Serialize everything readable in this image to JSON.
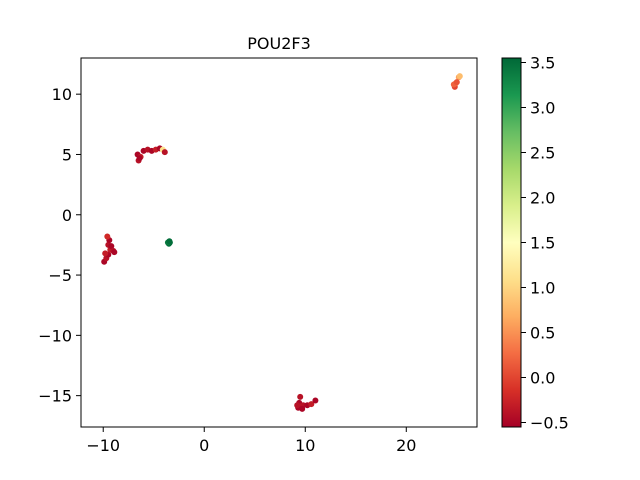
{
  "chart_data": {
    "type": "scatter",
    "title": "POU2F3",
    "xlabel": "",
    "ylabel": "",
    "xlim": [
      -12.2,
      27.0
    ],
    "ylim": [
      -17.6,
      13.0
    ],
    "xticks": [
      -10,
      0,
      10,
      20
    ],
    "yticks": [
      10,
      5,
      0,
      -5,
      -10,
      -15
    ],
    "xtick_labels": [
      "−10",
      "0",
      "10",
      "20"
    ],
    "ytick_labels": [
      "10",
      "5",
      "0",
      "−5",
      "−10",
      "−15"
    ],
    "grid": false,
    "colorbar": {
      "colormap": "RdYlGn",
      "min": -0.55,
      "max": 3.55,
      "ticks": [
        3.5,
        3.0,
        2.5,
        2.0,
        1.5,
        1.0,
        0.5,
        0.0,
        -0.5
      ],
      "tick_labels": [
        "3.5",
        "3.0",
        "2.5",
        "2.0",
        "1.5",
        "1.0",
        "0.5",
        "0.0",
        "−0.5"
      ]
    },
    "points": [
      {
        "x": -9.9,
        "y": -3.9,
        "v": -0.5
      },
      {
        "x": -9.7,
        "y": -3.6,
        "v": -0.4
      },
      {
        "x": -9.5,
        "y": -3.3,
        "v": -0.5
      },
      {
        "x": -9.3,
        "y": -2.9,
        "v": -0.3
      },
      {
        "x": -9.5,
        "y": -2.5,
        "v": -0.4
      },
      {
        "x": -9.4,
        "y": -2.1,
        "v": -0.5
      },
      {
        "x": -9.6,
        "y": -1.8,
        "v": -0.2
      },
      {
        "x": -9.2,
        "y": -2.6,
        "v": -0.5
      },
      {
        "x": -9.0,
        "y": -3.0,
        "v": -0.4
      },
      {
        "x": -8.9,
        "y": -3.1,
        "v": -0.5
      },
      {
        "x": -9.8,
        "y": -3.2,
        "v": -0.3
      },
      {
        "x": -6.5,
        "y": 4.5,
        "v": -0.4
      },
      {
        "x": -6.6,
        "y": 5.0,
        "v": -0.5
      },
      {
        "x": -6.3,
        "y": 4.8,
        "v": -0.3
      },
      {
        "x": -6.0,
        "y": 5.3,
        "v": -0.5
      },
      {
        "x": -5.6,
        "y": 5.4,
        "v": -0.4
      },
      {
        "x": -5.2,
        "y": 5.3,
        "v": -0.5
      },
      {
        "x": -4.8,
        "y": 5.4,
        "v": -0.3
      },
      {
        "x": -4.4,
        "y": 5.5,
        "v": -0.5
      },
      {
        "x": -4.1,
        "y": 5.4,
        "v": 1.1
      },
      {
        "x": -3.9,
        "y": 5.2,
        "v": -0.4
      },
      {
        "x": -6.4,
        "y": 4.7,
        "v": -0.5
      },
      {
        "x": -3.5,
        "y": -2.4,
        "v": 3.5
      },
      {
        "x": -3.4,
        "y": -2.3,
        "v": 3.5
      },
      {
        "x": -3.6,
        "y": -2.3,
        "v": 3.4
      },
      {
        "x": -3.45,
        "y": -2.2,
        "v": 3.5
      },
      {
        "x": 9.5,
        "y": -15.1,
        "v": -0.4
      },
      {
        "x": 9.4,
        "y": -15.6,
        "v": -0.5
      },
      {
        "x": 9.6,
        "y": -15.9,
        "v": -0.3
      },
      {
        "x": 9.3,
        "y": -16.0,
        "v": -0.5
      },
      {
        "x": 9.8,
        "y": -15.8,
        "v": -0.4
      },
      {
        "x": 10.2,
        "y": -15.8,
        "v": -0.5
      },
      {
        "x": 10.6,
        "y": -15.7,
        "v": -0.3
      },
      {
        "x": 11.0,
        "y": -15.4,
        "v": -0.5
      },
      {
        "x": 9.2,
        "y": -15.8,
        "v": -0.4
      },
      {
        "x": 9.7,
        "y": -16.1,
        "v": -0.5
      },
      {
        "x": 24.8,
        "y": 10.6,
        "v": 0.0
      },
      {
        "x": 24.9,
        "y": 10.9,
        "v": 0.3
      },
      {
        "x": 25.2,
        "y": 11.4,
        "v": 0.6
      },
      {
        "x": 25.3,
        "y": 11.5,
        "v": 0.8
      },
      {
        "x": 24.7,
        "y": 10.8,
        "v": 0.2
      },
      {
        "x": 25.0,
        "y": 11.0,
        "v": 0.1
      }
    ]
  }
}
